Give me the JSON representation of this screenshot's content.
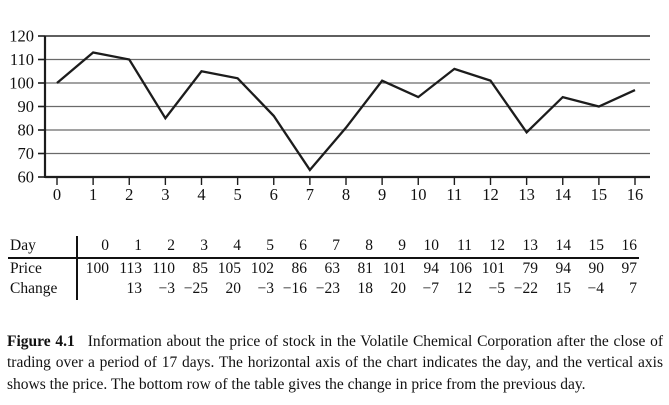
{
  "chart_data": {
    "type": "line",
    "x": [
      0,
      1,
      2,
      3,
      4,
      5,
      6,
      7,
      8,
      9,
      10,
      11,
      12,
      13,
      14,
      15,
      16
    ],
    "series": [
      {
        "name": "Price",
        "values": [
          100,
          113,
          110,
          85,
          105,
          102,
          86,
          63,
          81,
          101,
          94,
          106,
          101,
          79,
          94,
          90,
          97
        ]
      }
    ],
    "title": "",
    "xlabel": "Day",
    "ylabel": "Price",
    "xlim": [
      0,
      16
    ],
    "ylim": [
      60,
      120
    ],
    "yticks": [
      60,
      70,
      80,
      90,
      100,
      110,
      120
    ],
    "xticks": [
      0,
      1,
      2,
      3,
      4,
      5,
      6,
      7,
      8,
      9,
      10,
      11,
      12,
      13,
      14,
      15,
      16
    ],
    "grid": true,
    "legend_position": "none"
  },
  "table": {
    "row_headers": [
      "Day",
      "Price",
      "Change"
    ],
    "days": [
      0,
      1,
      2,
      3,
      4,
      5,
      6,
      7,
      8,
      9,
      10,
      11,
      12,
      13,
      14,
      15,
      16
    ],
    "prices": [
      100,
      113,
      110,
      85,
      105,
      102,
      86,
      63,
      81,
      101,
      94,
      106,
      101,
      79,
      94,
      90,
      97
    ],
    "changes": [
      null,
      13,
      -3,
      -25,
      20,
      -3,
      -16,
      -23,
      18,
      20,
      -7,
      12,
      -5,
      -22,
      15,
      -4,
      7
    ]
  },
  "caption": {
    "label": "Figure 4.1",
    "text": "Information about the price of stock in the Volatile Chemical Corporation after the close of trading over a period of 17 days. The horizontal axis of the chart indicates the day, and the vertical axis shows the price. The bottom row of the table gives the change in price from the previous day."
  },
  "colors": {
    "background": "#ffffff",
    "line": "#1c1c1c",
    "grid": "#6a6a6a",
    "top_grid": "#2a2a2a",
    "axis": "#1c1c1c",
    "text": "#111111"
  }
}
